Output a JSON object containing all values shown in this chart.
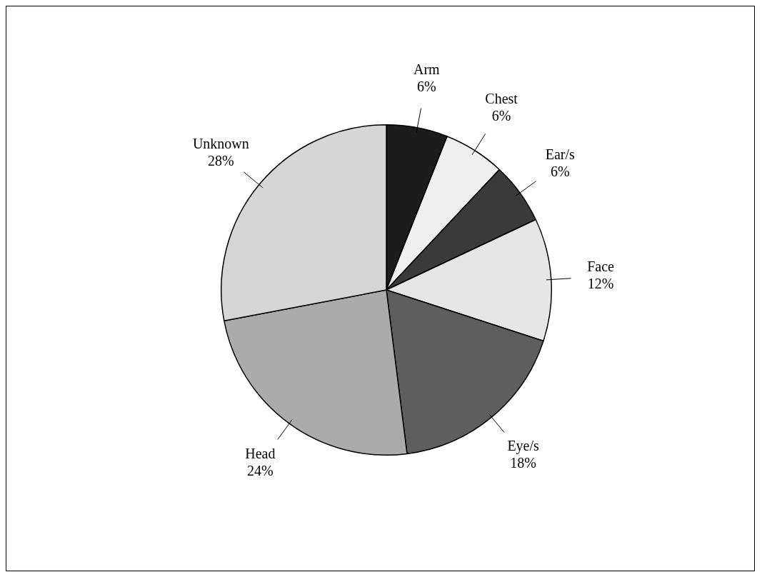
{
  "chart_data": {
    "type": "pie",
    "categories": [
      "Arm",
      "Chest",
      "Ear/s",
      "Face",
      "Eye/s",
      "Head",
      "Unknown"
    ],
    "values": [
      6,
      6,
      6,
      12,
      18,
      24,
      28
    ],
    "colors": [
      "#1c1c1c",
      "#efefef",
      "#3a3a3a",
      "#e6e6e6",
      "#5e5e5e",
      "#ababab",
      "#d6d6d6"
    ],
    "value_labels": [
      "6%",
      "6%",
      "6%",
      "12%",
      "18%",
      "24%",
      "28%"
    ],
    "legend": false
  }
}
